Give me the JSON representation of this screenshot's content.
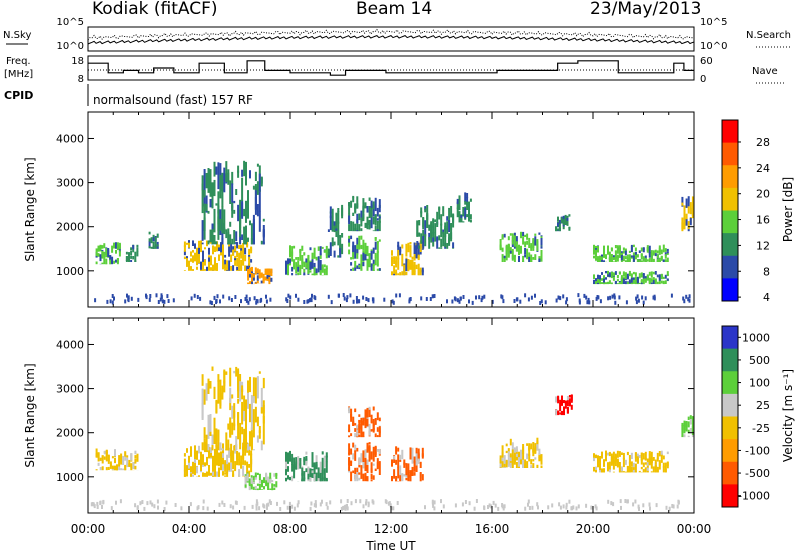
{
  "header": {
    "station": "Kodiak  (fitACF)",
    "beam": "Beam 14",
    "date": "23/May/2013"
  },
  "side_labels": {
    "nsky": "N.Sky",
    "nsearch": "N.Search",
    "freq": "Freq.",
    "freq_unit": "[MHz]",
    "nave": "Nave",
    "cpid": "CPID",
    "nsky_ticks": [
      "10^5",
      "10^0"
    ],
    "nsearch_ticks": [
      "10^5",
      "10^0"
    ],
    "freq_ticks": [
      "18",
      "8"
    ],
    "nave_ticks": [
      "60",
      "0"
    ]
  },
  "cpid_text": "normalsound (fast) 157 RF",
  "axes": {
    "x_ticks": [
      "00:00",
      "04:00",
      "08:00",
      "12:00",
      "16:00",
      "20:00",
      "00:00"
    ],
    "x_label": "Time UT",
    "y_label": "Slant Range [km]",
    "y_ticks": [
      "4000",
      "3000",
      "2000",
      "1000"
    ]
  },
  "power_colorbar": {
    "label": "Power [dB]",
    "ticks": [
      "28",
      "24",
      "20",
      "16",
      "12",
      "8",
      "4"
    ],
    "colors": [
      "#ff0000",
      "#ff5a00",
      "#ff9c00",
      "#f0c000",
      "#5ccf3a",
      "#2f8f5a",
      "#2b4aa8",
      "#0000ff"
    ]
  },
  "velocity_colorbar": {
    "label": "Velocity [m s⁻¹]",
    "ticks": [
      "1000",
      "500",
      "100",
      "25",
      "-25",
      "-100",
      "-500",
      "-1000"
    ],
    "colors": [
      "#2b35c8",
      "#2f8f5a",
      "#5ccf3a",
      "#c8c8c8",
      "#f0c000",
      "#ff9c00",
      "#ff5a00",
      "#ff0000"
    ]
  },
  "chart_data": [
    {
      "type": "heatmap",
      "title": "Power",
      "xlabel": "Time UT",
      "ylabel": "Slant Range [km]",
      "xlim_hours": [
        0,
        24
      ],
      "ylim": [
        180,
        4600
      ],
      "colorbar": "Power [dB]",
      "colorbar_range": [
        0,
        30
      ],
      "echo_regions": [
        {
          "t0": 0.3,
          "t1": 1.3,
          "r0": 1150,
          "r1": 1650,
          "level": 13
        },
        {
          "t0": 1.5,
          "t1": 2.0,
          "r0": 1200,
          "r1": 1600,
          "level": 10
        },
        {
          "t0": 2.4,
          "t1": 2.8,
          "r0": 1500,
          "r1": 1900,
          "level": 7
        },
        {
          "t0": 3.8,
          "t1": 6.5,
          "r0": 1000,
          "r1": 1700,
          "level": 18
        },
        {
          "t0": 4.5,
          "t1": 7.0,
          "r0": 1600,
          "r1": 3500,
          "level": 7
        },
        {
          "t0": 6.3,
          "t1": 7.3,
          "r0": 700,
          "r1": 1100,
          "level": 22
        },
        {
          "t0": 7.8,
          "t1": 9.5,
          "r0": 900,
          "r1": 1600,
          "level": 14
        },
        {
          "t0": 9.5,
          "t1": 10.1,
          "r0": 1300,
          "r1": 2500,
          "level": 10
        },
        {
          "t0": 10.3,
          "t1": 11.6,
          "r0": 1000,
          "r1": 1800,
          "level": 14
        },
        {
          "t0": 10.3,
          "t1": 11.6,
          "r0": 1900,
          "r1": 2700,
          "level": 10
        },
        {
          "t0": 12.0,
          "t1": 13.3,
          "r0": 900,
          "r1": 1700,
          "level": 17
        },
        {
          "t0": 13.0,
          "t1": 14.5,
          "r0": 1500,
          "r1": 2500,
          "level": 8
        },
        {
          "t0": 14.6,
          "t1": 15.2,
          "r0": 2100,
          "r1": 2800,
          "level": 9
        },
        {
          "t0": 16.3,
          "t1": 18.0,
          "r0": 1200,
          "r1": 1900,
          "level": 13
        },
        {
          "t0": 18.5,
          "t1": 19.1,
          "r0": 1900,
          "r1": 2300,
          "level": 9
        },
        {
          "t0": 20.0,
          "t1": 23.0,
          "r0": 1200,
          "r1": 1600,
          "level": 13
        },
        {
          "t0": 20.0,
          "t1": 23.0,
          "r0": 700,
          "r1": 1000,
          "level": 15
        },
        {
          "t0": 23.5,
          "t1": 24.0,
          "r0": 1900,
          "r1": 2700,
          "level": 18
        }
      ]
    },
    {
      "type": "heatmap",
      "title": "Velocity",
      "xlabel": "Time UT",
      "ylabel": "Slant Range [km]",
      "xlim_hours": [
        0,
        24
      ],
      "ylim": [
        180,
        4600
      ],
      "colorbar": "Velocity [m s⁻¹]",
      "colorbar_range": [
        -1000,
        1000
      ],
      "echo_regions": [
        {
          "t0": 0.3,
          "t1": 2.0,
          "r0": 1150,
          "r1": 1650,
          "velocity": 0
        },
        {
          "t0": 3.8,
          "t1": 6.5,
          "r0": 1000,
          "r1": 1800,
          "velocity": 0
        },
        {
          "t0": 4.5,
          "t1": 7.0,
          "r0": 1600,
          "r1": 3500,
          "velocity": 0
        },
        {
          "t0": 6.2,
          "t1": 7.5,
          "r0": 700,
          "r1": 1100,
          "velocity": 120
        },
        {
          "t0": 7.8,
          "t1": 9.5,
          "r0": 900,
          "r1": 1600,
          "velocity": 600
        },
        {
          "t0": 10.3,
          "t1": 11.6,
          "r0": 900,
          "r1": 1800,
          "velocity": -150
        },
        {
          "t0": 10.3,
          "t1": 11.6,
          "r0": 1900,
          "r1": 2600,
          "velocity": -500
        },
        {
          "t0": 12.0,
          "t1": 13.3,
          "r0": 900,
          "r1": 1700,
          "velocity": -150
        },
        {
          "t0": 16.3,
          "t1": 18.0,
          "r0": 1200,
          "r1": 1900,
          "velocity": 0
        },
        {
          "t0": 18.5,
          "t1": 19.2,
          "r0": 2400,
          "r1": 2900,
          "velocity": -800
        },
        {
          "t0": 20.0,
          "t1": 23.0,
          "r0": 1100,
          "r1": 1600,
          "velocity": 0
        },
        {
          "t0": 23.5,
          "t1": 24.0,
          "r0": 1900,
          "r1": 2400,
          "velocity": 300
        }
      ]
    },
    {
      "type": "line",
      "title": "Frequency",
      "ylabel": "[MHz]",
      "ylim": [
        8,
        18
      ],
      "x_hours": [
        0,
        0.8,
        1.4,
        2.0,
        2.6,
        3.4,
        4.4,
        5.4,
        6.3,
        7.0,
        8.0,
        9.6,
        10.2,
        11.8,
        14.0,
        16.2,
        18.6,
        19.4,
        21.0,
        23.2,
        23.6,
        24
      ],
      "y": [
        15,
        11,
        12,
        11,
        13,
        11,
        15,
        11,
        16,
        12,
        11,
        10,
        12,
        11,
        11,
        12,
        15,
        16,
        11,
        15,
        12,
        12
      ]
    }
  ]
}
